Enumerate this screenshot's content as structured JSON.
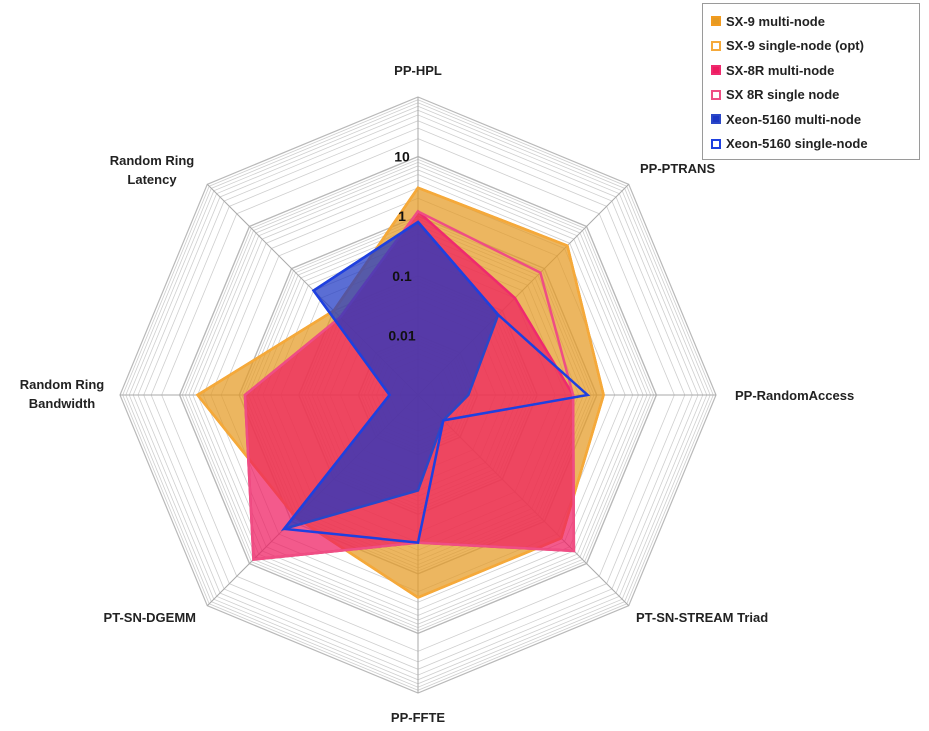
{
  "chart_data": {
    "type": "radar",
    "scale": "log",
    "axes": [
      "PP-HPL",
      "PP-PTRANS",
      "PP-RandomAccess",
      "PT-SN-STREAM Triad",
      "PP-FFTE",
      "PT-SN-DGEMM",
      "Random Ring Bandwidth",
      "Random Ring Latency"
    ],
    "axis_label_lines": [
      [
        "PP-HPL"
      ],
      [
        "PP-PTRANS"
      ],
      [
        "PP-RandomAccess"
      ],
      [
        "PT-SN-STREAM Triad"
      ],
      [
        "PP-FFTE"
      ],
      [
        "PT-SN-DGEMM"
      ],
      [
        "Random Ring",
        "Bandwidth"
      ],
      [
        "Random Ring",
        "Latency"
      ]
    ],
    "tick_labels": [
      "0.01",
      "0.1",
      "1",
      "10"
    ],
    "tick_values": [
      0.01,
      0.1,
      1,
      10
    ],
    "rmin": 0.001,
    "rmax": 100,
    "legend_position": "top-right",
    "series": [
      {
        "name": "SX-9 multi-node",
        "values": [
          3.0,
          3.5,
          1.3,
          2.5,
          2.5,
          0.8,
          5.0,
          0.1
        ],
        "style": "filled",
        "color": "#f29b1f",
        "fill": "#e59a22"
      },
      {
        "name": "SX-9 single-node (opt)",
        "values": [
          3.0,
          3.5,
          1.3,
          2.5,
          2.5,
          0.8,
          5.0,
          0.1
        ],
        "style": "outline",
        "color": "#f5a93a"
      },
      {
        "name": "SX-8R multi-node",
        "values": [
          1.2,
          0.2,
          0.4,
          5.0,
          0.3,
          8.0,
          0.8,
          0.07
        ],
        "style": "filled",
        "color": "#ef2a6e",
        "fill": "#ee1b60"
      },
      {
        "name": "SX 8R single node",
        "values": [
          1.2,
          0.8,
          0.4,
          5.0,
          0.3,
          8.0,
          0.8,
          0.07
        ],
        "style": "outline",
        "color": "#ef4e84"
      },
      {
        "name": "Xeon-5160 multi-node",
        "values": [
          0.8,
          0.08,
          0.007,
          0.004,
          0.04,
          1.5,
          0.003,
          0.3
        ],
        "style": "filled",
        "color": "#2a47c8",
        "fill": "#1c36c4"
      },
      {
        "name": "Xeon-5160 single-node",
        "values": [
          0.8,
          0.08,
          0.7,
          0.004,
          0.3,
          1.5,
          0.003,
          0.3
        ],
        "style": "outline",
        "color": "#1e40e0"
      }
    ]
  }
}
